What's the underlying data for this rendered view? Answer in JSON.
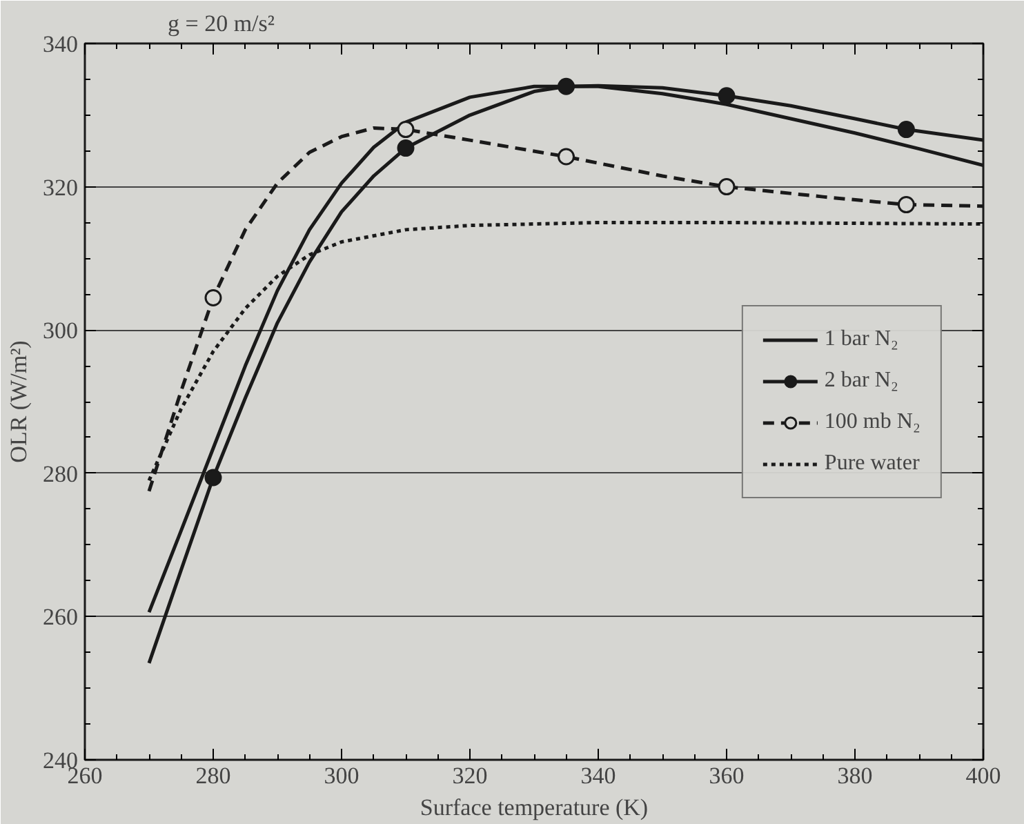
{
  "chart_data": {
    "type": "line",
    "title": "g = 20 m/s²",
    "xlabel": "Surface temperature (K)",
    "ylabel": "OLR (W/m²)",
    "xlim": [
      260,
      400
    ],
    "xticks": [
      260,
      280,
      300,
      320,
      340,
      360,
      380,
      400
    ],
    "ylim": [
      240,
      340
    ],
    "yticks": [
      240,
      260,
      280,
      300,
      320,
      340
    ],
    "grid": "y",
    "legend": "right",
    "marker": "none",
    "series": [
      {
        "name": "1 bar N₂",
        "color": "#1a1a1a",
        "line_style": "solid",
        "x": [
          270,
          275,
          280,
          285,
          290,
          295,
          300,
          305,
          310,
          320,
          330,
          340,
          350,
          360,
          370,
          380,
          390,
          400
        ],
        "values": [
          260.6,
          272,
          283.5,
          295,
          305.5,
          314,
          320.5,
          325.5,
          329,
          332.5,
          334,
          334,
          333,
          331.5,
          329.5,
          327.5,
          325.3,
          323
        ]
      },
      {
        "name": "2 bar N₂",
        "color": "#1a1a1a",
        "line_style": "solid",
        "x": [
          270,
          275,
          280,
          285,
          290,
          295,
          300,
          305,
          310,
          320,
          330,
          335,
          340,
          350,
          360,
          370,
          380,
          388,
          400
        ],
        "values": [
          253.5,
          266.5,
          279.4,
          290.5,
          301,
          309.5,
          316.5,
          321.5,
          325.4,
          330,
          333.3,
          334,
          334.1,
          333.8,
          332.7,
          331.3,
          329.5,
          328,
          326.5
        ]
      },
      {
        "type": "scatter",
        "marker": "circle",
        "color": "#1a1a1a",
        "x": [
          280,
          310,
          335,
          360,
          388
        ],
        "values": [
          279.4,
          325.4,
          334,
          332.7,
          328
        ]
      },
      {
        "name": "100 mb N₂",
        "color": "#1a1a1a",
        "line_style": "dashed",
        "x": [
          270,
          275,
          280,
          285,
          290,
          295,
          300,
          305,
          310,
          320,
          335,
          350,
          360,
          375,
          388,
          400
        ],
        "values": [
          277.5,
          291.5,
          304.5,
          314,
          320.5,
          324.8,
          327,
          328.2,
          328,
          326.5,
          324.2,
          321.5,
          320,
          318.6,
          317.5,
          317.3
        ]
      },
      {
        "type": "scatter",
        "marker": "circle",
        "color": "#1a1a1a",
        "x": [
          280,
          310,
          335,
          360,
          388
        ],
        "values": [
          304.5,
          328,
          324.2,
          320,
          317.5
        ]
      },
      {
        "name": "Pure water",
        "color": "#1a1a1a",
        "line_style": "dotted",
        "x": [
          270,
          275,
          280,
          285,
          290,
          295,
          300,
          310,
          320,
          340,
          360,
          380,
          400
        ],
        "values": [
          279,
          289,
          297,
          303,
          307.5,
          310.5,
          312.3,
          314,
          314.6,
          315,
          315,
          314.9,
          314.8
        ]
      }
    ]
  }
}
